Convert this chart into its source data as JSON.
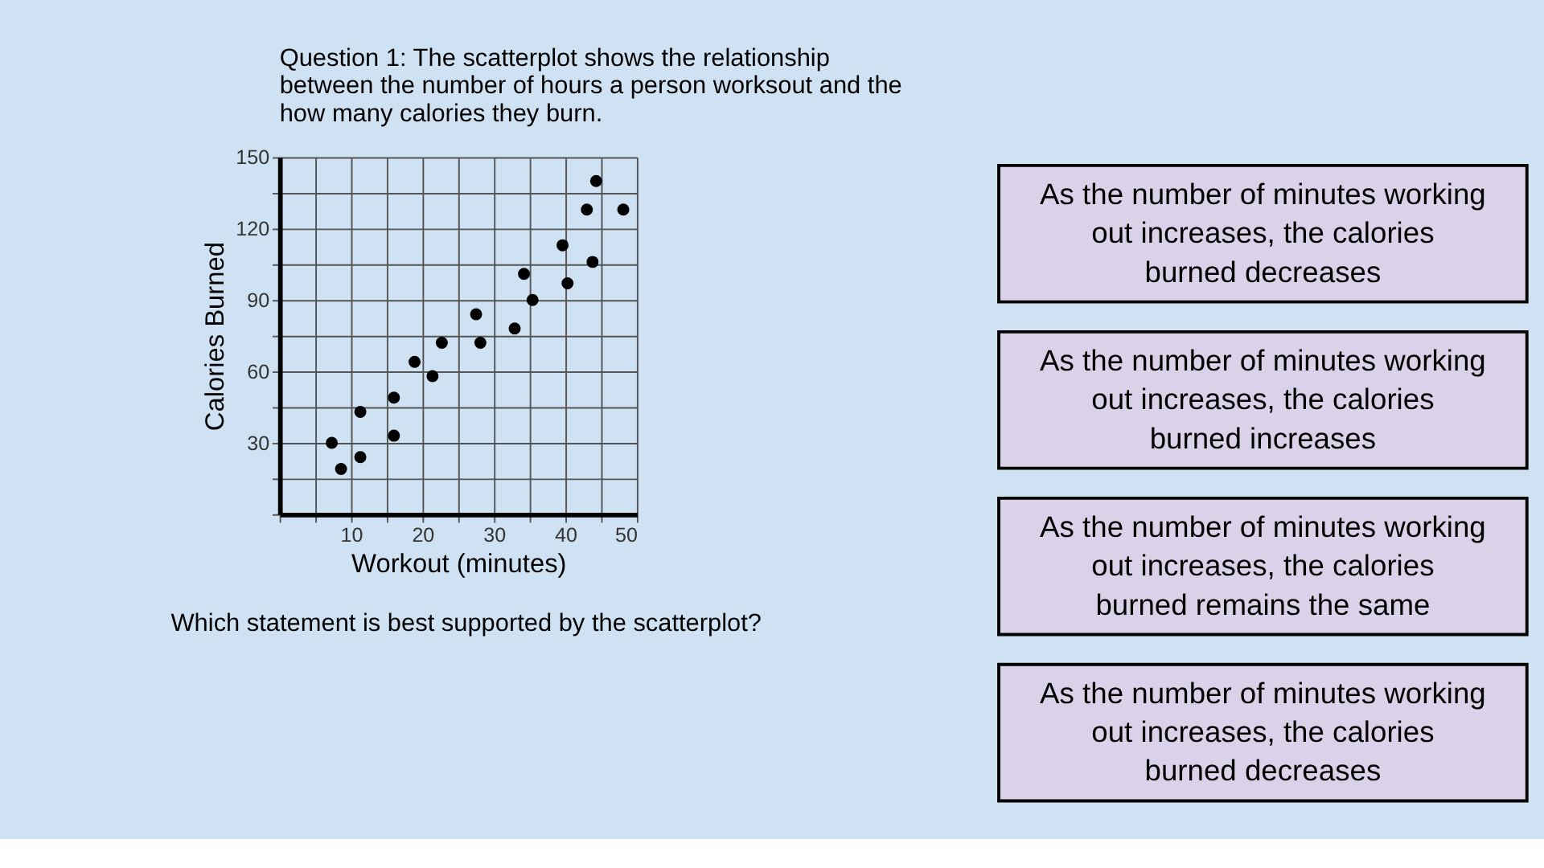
{
  "chart_data": [
    {
      "type": "scatter",
      "title": "Question 1: The scatterplot shows the relationship between the number of hours a person worksout and the how many calories they burn.",
      "xlabel": "Workout (minutes)",
      "ylabel": "Calories Burned",
      "x": [
        7.3,
        8.6,
        11.3,
        11.3,
        16.0,
        16.0,
        18.9,
        21.4,
        22.7,
        27.5,
        28.1,
        32.9,
        34.2,
        35.4,
        39.6,
        40.3,
        43.0,
        43.8,
        44.3,
        48.1
      ],
      "series": [
        {
          "color": "#000000",
          "values": [
            30,
            19,
            43,
            24,
            49,
            33,
            64,
            58,
            72,
            84,
            72,
            78,
            101,
            90,
            113,
            97,
            128,
            106,
            140,
            128
          ]
        }
      ],
      "xlim": [
        0,
        50
      ],
      "ylim": [
        0,
        150
      ],
      "xticks": [
        {
          "value": 0,
          "label": null
        },
        {
          "value": 5,
          "label": null
        },
        10,
        {
          "value": 15,
          "label": null
        },
        20,
        {
          "value": 25,
          "label": null
        },
        30,
        {
          "value": 35,
          "label": null
        },
        40,
        {
          "value": 45,
          "label": null
        },
        50
      ],
      "yticks": [
        {
          "value": 0,
          "label": null
        },
        {
          "value": 15,
          "label": null
        },
        30,
        {
          "value": 45,
          "label": null
        },
        60,
        {
          "value": 75,
          "label": null
        },
        90,
        {
          "value": 105,
          "label": null
        },
        120,
        {
          "value": 135,
          "label": null
        },
        150
      ],
      "grid": true,
      "marker": "circle",
      "annotations": [
        "Which statement is best supported by the scatterplot?"
      ]
    },
    {
      "type": "other",
      "annotations": [
        "As the number of minutes working out increases, the calories burned decreases",
        "As the number of minutes working out increases, the calories burned increases",
        "As the number of minutes working out increases, the calories burned remains the same",
        "As the number of minutes working out increases, the calories burned decreases"
      ]
    }
  ]
}
